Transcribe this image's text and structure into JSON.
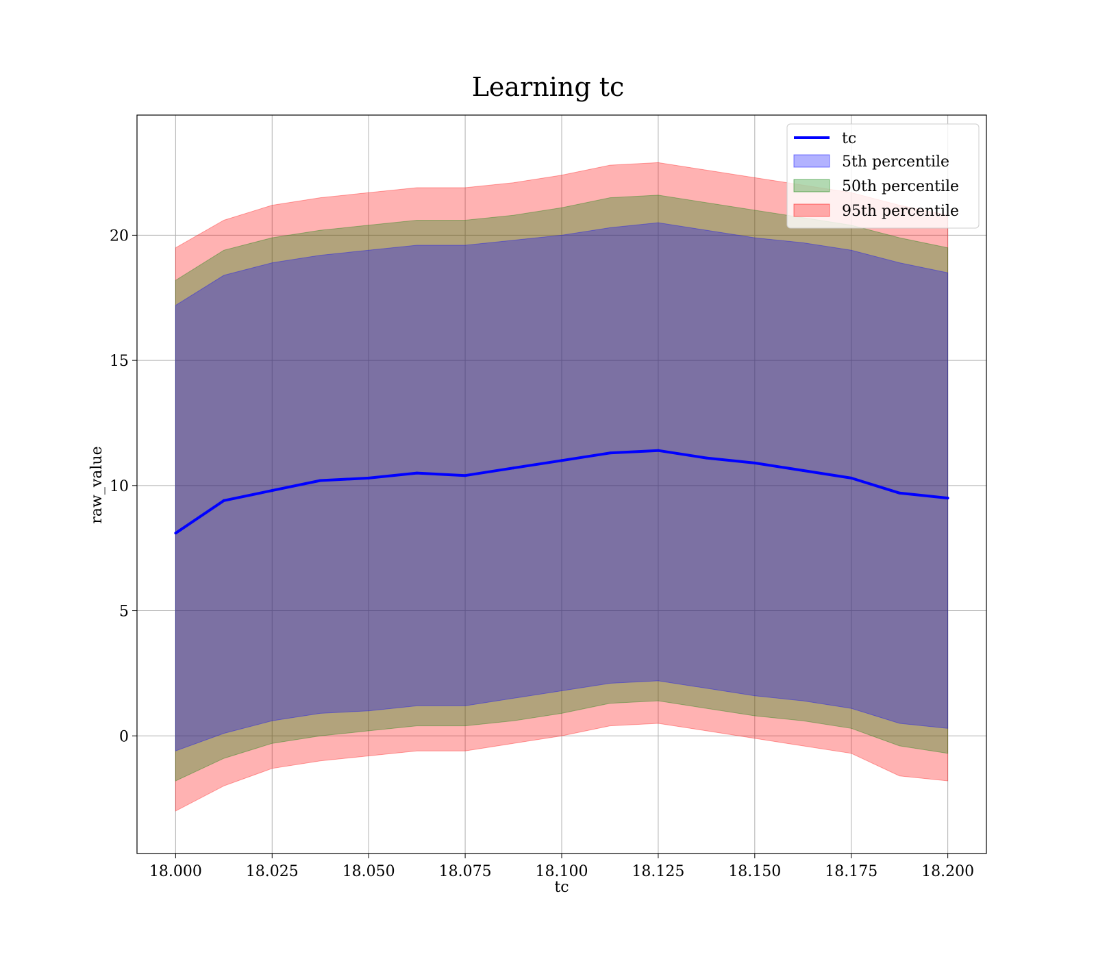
{
  "chart_data": {
    "type": "area",
    "title": "Learning tc",
    "xlabel": "tc",
    "ylabel": "raw_value",
    "xlim": [
      17.99,
      18.21
    ],
    "ylim": [
      -4.7,
      24.8
    ],
    "xticks": [
      18.0,
      18.025,
      18.05,
      18.075,
      18.1,
      18.125,
      18.15,
      18.175,
      18.2
    ],
    "xtick_labels": [
      "18.000",
      "18.025",
      "18.050",
      "18.075",
      "18.100",
      "18.125",
      "18.150",
      "18.175",
      "18.200"
    ],
    "yticks": [
      0,
      5,
      10,
      15,
      20
    ],
    "ytick_labels": [
      "0",
      "5",
      "10",
      "15",
      "20"
    ],
    "grid": true,
    "legend_position": "top-right",
    "colors": {
      "line": "#0000ff",
      "band_5": "#0000ff",
      "band_50": "#008000",
      "band_95": "#ff0000"
    },
    "band_opacity": 0.3,
    "x": [
      18.0,
      18.0125,
      18.025,
      18.0375,
      18.05,
      18.0625,
      18.075,
      18.0875,
      18.1,
      18.1125,
      18.125,
      18.1375,
      18.15,
      18.1625,
      18.175,
      18.1875,
      18.2
    ],
    "line": {
      "name": "tc",
      "values": [
        8.1,
        9.4,
        9.8,
        10.2,
        10.3,
        10.5,
        10.4,
        10.7,
        11.0,
        11.3,
        11.4,
        11.1,
        10.9,
        10.6,
        10.3,
        9.7,
        9.5
      ]
    },
    "bands": [
      {
        "name": "5th percentile",
        "lower": [
          -0.6,
          0.1,
          0.6,
          0.9,
          1.0,
          1.2,
          1.2,
          1.5,
          1.8,
          2.1,
          2.2,
          1.9,
          1.6,
          1.4,
          1.1,
          0.5,
          0.3
        ],
        "upper": [
          17.2,
          18.4,
          18.9,
          19.2,
          19.4,
          19.6,
          19.6,
          19.8,
          20.0,
          20.3,
          20.5,
          20.2,
          19.9,
          19.7,
          19.4,
          18.9,
          18.5
        ]
      },
      {
        "name": "50th percentile",
        "lower": [
          -1.8,
          -0.9,
          -0.3,
          0.0,
          0.2,
          0.4,
          0.4,
          0.6,
          0.9,
          1.3,
          1.4,
          1.1,
          0.8,
          0.6,
          0.3,
          -0.4,
          -0.7
        ],
        "upper": [
          18.2,
          19.4,
          19.9,
          20.2,
          20.4,
          20.6,
          20.6,
          20.8,
          21.1,
          21.5,
          21.6,
          21.3,
          21.0,
          20.7,
          20.4,
          19.9,
          19.5
        ]
      },
      {
        "name": "95th percentile",
        "lower": [
          -3.0,
          -2.0,
          -1.3,
          -1.0,
          -0.8,
          -0.6,
          -0.6,
          -0.3,
          0.0,
          0.4,
          0.5,
          0.2,
          -0.1,
          -0.4,
          -0.7,
          -1.6,
          -1.8
        ],
        "upper": [
          19.5,
          20.6,
          21.2,
          21.5,
          21.7,
          21.9,
          21.9,
          22.1,
          22.4,
          22.8,
          22.9,
          22.6,
          22.3,
          22.0,
          21.7,
          21.2,
          20.8
        ]
      }
    ]
  }
}
